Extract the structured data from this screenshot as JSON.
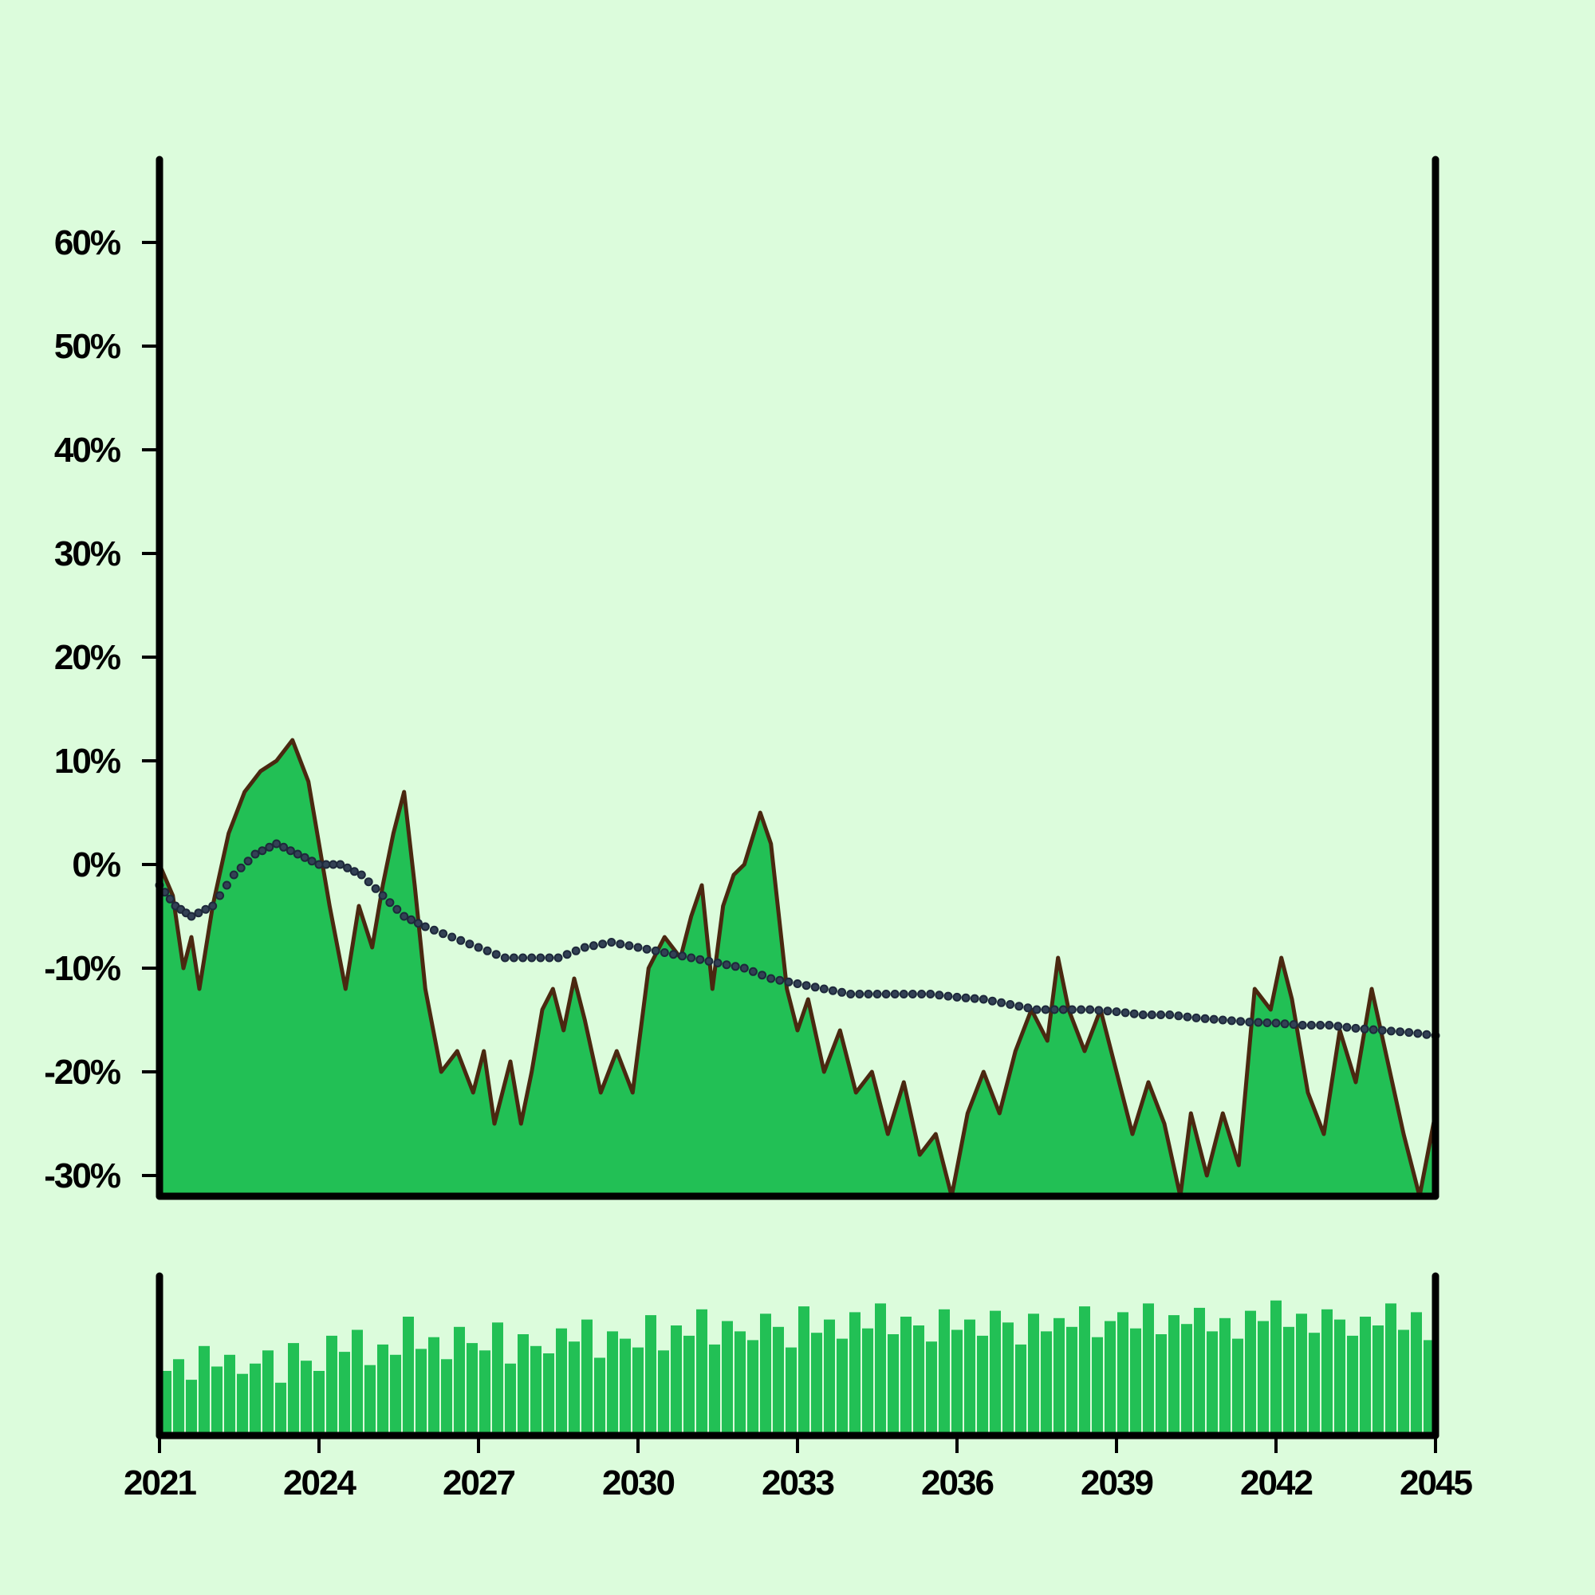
{
  "chart_data": [
    {
      "type": "area",
      "panel": "main",
      "x_range": [
        2021,
        2045
      ],
      "ylim": [
        -32,
        68
      ],
      "y_ticks": [
        -30,
        -20,
        -10,
        0,
        10,
        20,
        30,
        40,
        50,
        60
      ],
      "y_tick_labels": [
        "-30%",
        "-20%",
        "-10%",
        "0%",
        "10%",
        "20%",
        "30%",
        "40%",
        "50%",
        "60%"
      ],
      "grid": false,
      "legend": "none",
      "colors": {
        "area_fill": "#22c055",
        "line": "#4a2810",
        "trend": "#1e293b",
        "background": "#dcfcdc",
        "axis": "#000000"
      },
      "series": [
        {
          "kind": "area-line",
          "points": [
            [
              2021.0,
              0
            ],
            [
              2021.25,
              -3
            ],
            [
              2021.45,
              -10
            ],
            [
              2021.6,
              -7
            ],
            [
              2021.75,
              -12
            ],
            [
              2022.0,
              -4
            ],
            [
              2022.3,
              3
            ],
            [
              2022.6,
              7
            ],
            [
              2022.9,
              9
            ],
            [
              2023.2,
              10
            ],
            [
              2023.5,
              12
            ],
            [
              2023.8,
              8
            ],
            [
              2024.2,
              -4
            ],
            [
              2024.5,
              -12
            ],
            [
              2024.75,
              -4
            ],
            [
              2025.0,
              -8
            ],
            [
              2025.2,
              -2
            ],
            [
              2025.4,
              3
            ],
            [
              2025.6,
              7
            ],
            [
              2025.8,
              -2
            ],
            [
              2026.0,
              -12
            ],
            [
              2026.3,
              -20
            ],
            [
              2026.6,
              -18
            ],
            [
              2026.9,
              -22
            ],
            [
              2027.1,
              -18
            ],
            [
              2027.3,
              -25
            ],
            [
              2027.6,
              -19
            ],
            [
              2027.8,
              -25
            ],
            [
              2028.0,
              -20
            ],
            [
              2028.2,
              -14
            ],
            [
              2028.4,
              -12
            ],
            [
              2028.6,
              -16
            ],
            [
              2028.8,
              -11
            ],
            [
              2029.0,
              -15
            ],
            [
              2029.3,
              -22
            ],
            [
              2029.6,
              -18
            ],
            [
              2029.9,
              -22
            ],
            [
              2030.2,
              -10
            ],
            [
              2030.5,
              -7
            ],
            [
              2030.8,
              -9
            ],
            [
              2031.0,
              -5
            ],
            [
              2031.2,
              -2
            ],
            [
              2031.4,
              -12
            ],
            [
              2031.6,
              -4
            ],
            [
              2031.8,
              -1
            ],
            [
              2032.0,
              0
            ],
            [
              2032.3,
              5
            ],
            [
              2032.5,
              2
            ],
            [
              2032.8,
              -12
            ],
            [
              2033.0,
              -16
            ],
            [
              2033.2,
              -13
            ],
            [
              2033.5,
              -20
            ],
            [
              2033.8,
              -16
            ],
            [
              2034.1,
              -22
            ],
            [
              2034.4,
              -20
            ],
            [
              2034.7,
              -26
            ],
            [
              2035.0,
              -21
            ],
            [
              2035.3,
              -28
            ],
            [
              2035.6,
              -26
            ],
            [
              2035.9,
              -32
            ],
            [
              2036.2,
              -24
            ],
            [
              2036.5,
              -20
            ],
            [
              2036.8,
              -24
            ],
            [
              2037.1,
              -18
            ],
            [
              2037.4,
              -14
            ],
            [
              2037.7,
              -17
            ],
            [
              2037.9,
              -9
            ],
            [
              2038.1,
              -14
            ],
            [
              2038.4,
              -18
            ],
            [
              2038.7,
              -14
            ],
            [
              2039.0,
              -20
            ],
            [
              2039.3,
              -26
            ],
            [
              2039.6,
              -21
            ],
            [
              2039.9,
              -25
            ],
            [
              2040.2,
              -32
            ],
            [
              2040.4,
              -24
            ],
            [
              2040.7,
              -30
            ],
            [
              2041.0,
              -24
            ],
            [
              2041.3,
              -29
            ],
            [
              2041.6,
              -12
            ],
            [
              2041.9,
              -14
            ],
            [
              2042.1,
              -9
            ],
            [
              2042.3,
              -13
            ],
            [
              2042.6,
              -22
            ],
            [
              2042.9,
              -26
            ],
            [
              2043.2,
              -16
            ],
            [
              2043.5,
              -21
            ],
            [
              2043.8,
              -12
            ],
            [
              2044.1,
              -19
            ],
            [
              2044.4,
              -26
            ],
            [
              2044.7,
              -32
            ],
            [
              2045.0,
              -24
            ]
          ]
        },
        {
          "kind": "trend-dots",
          "points": [
            [
              2021.0,
              -2
            ],
            [
              2021.3,
              -4
            ],
            [
              2021.6,
              -5
            ],
            [
              2022.0,
              -4
            ],
            [
              2022.4,
              -1
            ],
            [
              2022.8,
              1
            ],
            [
              2023.2,
              2
            ],
            [
              2023.6,
              1
            ],
            [
              2024.0,
              0
            ],
            [
              2024.4,
              0
            ],
            [
              2024.8,
              -1
            ],
            [
              2025.2,
              -3
            ],
            [
              2025.6,
              -5
            ],
            [
              2026.0,
              -6
            ],
            [
              2026.5,
              -7
            ],
            [
              2027.0,
              -8
            ],
            [
              2027.5,
              -9
            ],
            [
              2028.0,
              -9
            ],
            [
              2028.5,
              -9
            ],
            [
              2029.0,
              -8
            ],
            [
              2029.5,
              -7.5
            ],
            [
              2030.0,
              -8
            ],
            [
              2030.5,
              -8.5
            ],
            [
              2031.0,
              -9
            ],
            [
              2031.5,
              -9.5
            ],
            [
              2032.0,
              -10
            ],
            [
              2032.5,
              -11
            ],
            [
              2033.0,
              -11.5
            ],
            [
              2033.5,
              -12
            ],
            [
              2034.0,
              -12.5
            ],
            [
              2034.5,
              -12.5
            ],
            [
              2035.0,
              -12.5
            ],
            [
              2035.5,
              -12.5
            ],
            [
              2036.0,
              -12.8
            ],
            [
              2036.5,
              -13
            ],
            [
              2037.0,
              -13.5
            ],
            [
              2037.5,
              -14
            ],
            [
              2038.0,
              -14
            ],
            [
              2038.5,
              -14
            ],
            [
              2039.0,
              -14.2
            ],
            [
              2039.5,
              -14.5
            ],
            [
              2040.0,
              -14.5
            ],
            [
              2040.5,
              -14.8
            ],
            [
              2041.0,
              -15
            ],
            [
              2041.5,
              -15.2
            ],
            [
              2042.0,
              -15.3
            ],
            [
              2042.5,
              -15.5
            ],
            [
              2043.0,
              -15.5
            ],
            [
              2043.5,
              -15.8
            ],
            [
              2044.0,
              -16
            ],
            [
              2044.5,
              -16.2
            ],
            [
              2045.0,
              -16.5
            ]
          ]
        }
      ]
    },
    {
      "type": "bar",
      "panel": "volume",
      "x_range": [
        2021,
        2045
      ],
      "x_ticks": [
        2021,
        2024,
        2027,
        2030,
        2033,
        2036,
        2039,
        2042,
        2045
      ],
      "x_tick_labels": [
        "2021",
        "2024",
        "2027",
        "2030",
        "2033",
        "2036",
        "2039",
        "2042",
        "2045"
      ],
      "grid": false,
      "legend": "none",
      "colors": {
        "bar": "#22c055"
      },
      "values": [
        0.44,
        0.52,
        0.38,
        0.61,
        0.47,
        0.55,
        0.42,
        0.49,
        0.58,
        0.36,
        0.63,
        0.51,
        0.44,
        0.68,
        0.57,
        0.72,
        0.48,
        0.62,
        0.55,
        0.81,
        0.59,
        0.67,
        0.52,
        0.74,
        0.63,
        0.58,
        0.77,
        0.49,
        0.69,
        0.61,
        0.56,
        0.73,
        0.64,
        0.79,
        0.53,
        0.71,
        0.66,
        0.6,
        0.82,
        0.58,
        0.75,
        0.68,
        0.86,
        0.62,
        0.78,
        0.71,
        0.65,
        0.83,
        0.74,
        0.6,
        0.88,
        0.7,
        0.79,
        0.66,
        0.84,
        0.73,
        0.9,
        0.69,
        0.81,
        0.75,
        0.64,
        0.86,
        0.72,
        0.79,
        0.68,
        0.85,
        0.77,
        0.62,
        0.83,
        0.71,
        0.8,
        0.74,
        0.88,
        0.67,
        0.78,
        0.84,
        0.73,
        0.9,
        0.69,
        0.82,
        0.76,
        0.87,
        0.71,
        0.8,
        0.66,
        0.85,
        0.78,
        0.92,
        0.74,
        0.83,
        0.7,
        0.86,
        0.79,
        0.68,
        0.81,
        0.75,
        0.9,
        0.72,
        0.84,
        0.65
      ]
    }
  ]
}
